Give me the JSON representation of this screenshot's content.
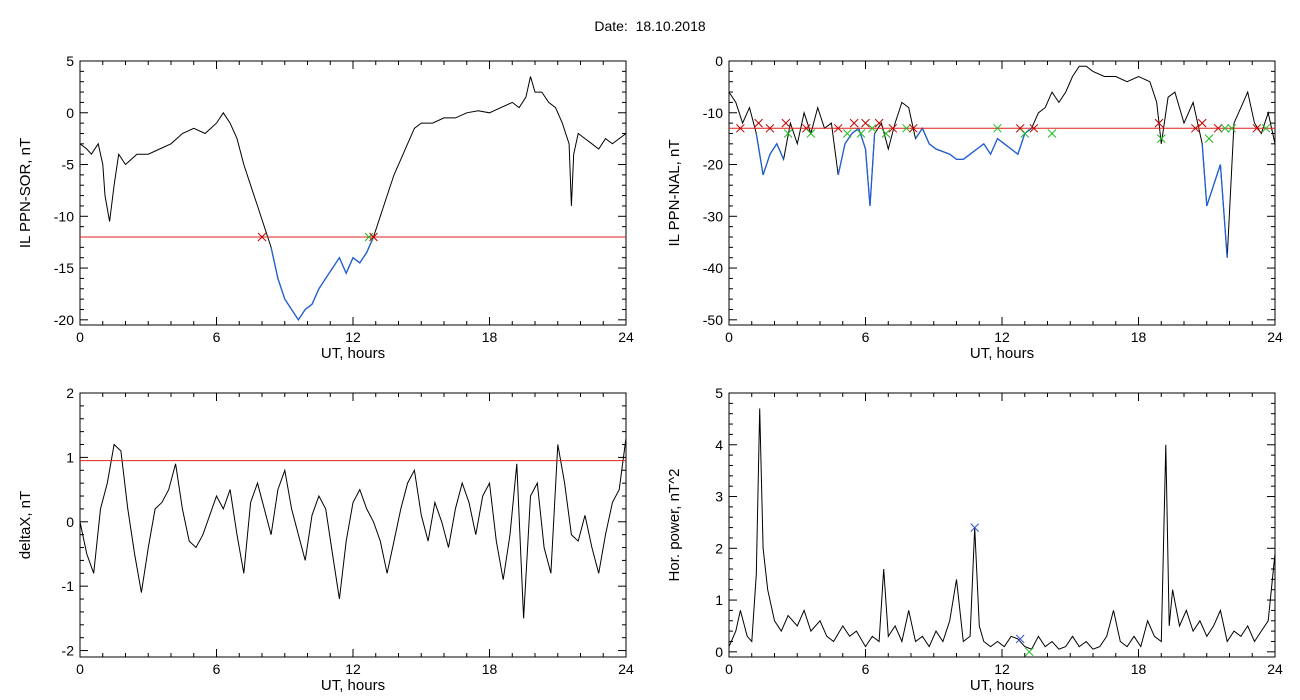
{
  "header": {
    "date_label": "Date:",
    "date_value": "18.10.2018"
  },
  "colors": {
    "trace": "#000000",
    "below_threshold": "#1f5fd6",
    "threshold": "#e0201a",
    "cross_red": "#c00000",
    "cross_green": "#22bb22",
    "cross_blue": "#3355cc"
  },
  "chart_data": [
    {
      "type": "line",
      "id": "sor",
      "xlabel": "UT, hours",
      "ylabel": "IL PPN-SOR, nT",
      "xlim": [
        0,
        24
      ],
      "ylim": [
        -20.5,
        5
      ],
      "xticks": [
        0,
        6,
        12,
        18,
        24
      ],
      "yticks": [
        5,
        0,
        -5,
        -10,
        -15,
        -20
      ],
      "threshold": -12,
      "x": [
        0,
        0.3,
        0.5,
        0.8,
        1.0,
        1.1,
        1.3,
        1.5,
        1.7,
        2.0,
        2.5,
        3.0,
        3.5,
        4.0,
        4.5,
        5.0,
        5.5,
        6.0,
        6.3,
        6.6,
        6.9,
        7.2,
        7.5,
        7.8,
        8.1,
        8.4,
        8.7,
        9.0,
        9.3,
        9.6,
        9.9,
        10.2,
        10.5,
        10.8,
        11.1,
        11.4,
        11.7,
        12.0,
        12.3,
        12.6,
        12.9,
        13.2,
        13.5,
        13.8,
        14.1,
        14.4,
        14.7,
        15.0,
        15.5,
        16.0,
        16.5,
        17.0,
        17.5,
        18.0,
        18.5,
        19.0,
        19.3,
        19.6,
        19.8,
        20.0,
        20.3,
        20.6,
        20.9,
        21.2,
        21.5,
        21.6,
        21.7,
        21.9,
        22.2,
        22.5,
        22.8,
        23.1,
        23.4,
        23.7,
        24.0
      ],
      "values": [
        -3,
        -3.5,
        -4,
        -3,
        -5,
        -8,
        -10.5,
        -7,
        -4,
        -5,
        -4,
        -4,
        -3.5,
        -3,
        -2,
        -1.5,
        -2,
        -1,
        0,
        -1,
        -2.5,
        -5,
        -7,
        -9,
        -11,
        -13,
        -16,
        -18,
        -19,
        -20,
        -19,
        -18.5,
        -17,
        -16,
        -15,
        -14,
        -15.5,
        -14,
        -14.5,
        -13.5,
        -12,
        -10,
        -8,
        -6,
        -4.5,
        -3,
        -1.5,
        -1,
        -1,
        -0.5,
        -0.5,
        0,
        0.2,
        0,
        0.5,
        1,
        0.5,
        1.5,
        3.5,
        2,
        2,
        1,
        0.5,
        -1,
        -3,
        -9,
        -4,
        -2,
        -2.5,
        -3,
        -3.5,
        -2.5,
        -3,
        -2.5,
        -2
      ],
      "crosses": [
        {
          "x": 8.0,
          "y": -12,
          "color": "cross_red"
        },
        {
          "x": 12.7,
          "y": -12,
          "color": "cross_green"
        },
        {
          "x": 12.9,
          "y": -12,
          "color": "cross_red"
        }
      ]
    },
    {
      "type": "line",
      "id": "nal",
      "xlabel": "UT, hours",
      "ylabel": "IL PPN-NAL, nT",
      "xlim": [
        0,
        24
      ],
      "ylim": [
        -51,
        0
      ],
      "xticks": [
        0,
        6,
        12,
        18,
        24
      ],
      "yticks": [
        0,
        -10,
        -20,
        -30,
        -40,
        -50
      ],
      "threshold": -13,
      "x": [
        0,
        0.3,
        0.6,
        0.9,
        1.2,
        1.5,
        1.8,
        2.1,
        2.4,
        2.7,
        3.0,
        3.3,
        3.6,
        3.9,
        4.2,
        4.5,
        4.8,
        5.1,
        5.4,
        5.7,
        6.0,
        6.2,
        6.4,
        6.7,
        7.0,
        7.3,
        7.6,
        7.9,
        8.2,
        8.5,
        8.8,
        9.1,
        9.4,
        9.7,
        10.0,
        10.3,
        10.6,
        10.9,
        11.2,
        11.5,
        11.8,
        12.1,
        12.4,
        12.7,
        13.0,
        13.3,
        13.6,
        13.9,
        14.2,
        14.5,
        14.8,
        15.1,
        15.4,
        15.7,
        16.0,
        16.5,
        17.0,
        17.5,
        18.0,
        18.5,
        18.8,
        19.0,
        19.3,
        19.6,
        20.0,
        20.4,
        20.8,
        21.0,
        21.3,
        21.6,
        21.9,
        22.2,
        22.5,
        22.8,
        23.1,
        23.4,
        23.7,
        24.0
      ],
      "values": [
        -6,
        -8,
        -12,
        -9,
        -14,
        -22,
        -18,
        -16,
        -19,
        -12,
        -16,
        -10,
        -14,
        -9,
        -13,
        -12,
        -22,
        -16,
        -14,
        -13,
        -17,
        -28,
        -14,
        -12,
        -17,
        -12,
        -8,
        -9,
        -15,
        -13,
        -16,
        -17,
        -17.5,
        -18,
        -19,
        -19,
        -18,
        -17,
        -16,
        -18,
        -15,
        -16,
        -17,
        -18,
        -14,
        -13,
        -10,
        -9,
        -6,
        -8,
        -6,
        -3,
        -1,
        -1,
        -2,
        -3,
        -3,
        -4,
        -3,
        -4,
        -8,
        -16,
        -7,
        -6,
        -12,
        -8,
        -16,
        -28,
        -24,
        -20,
        -38,
        -12,
        -9,
        -6,
        -12,
        -14,
        -10,
        -16
      ],
      "crosses": [
        {
          "x": 0.5,
          "y": -13,
          "color": "cross_red"
        },
        {
          "x": 1.3,
          "y": -12,
          "color": "cross_red"
        },
        {
          "x": 1.8,
          "y": -13,
          "color": "cross_red"
        },
        {
          "x": 2.5,
          "y": -12,
          "color": "cross_red"
        },
        {
          "x": 2.6,
          "y": -14,
          "color": "cross_green"
        },
        {
          "x": 3.4,
          "y": -13,
          "color": "cross_red"
        },
        {
          "x": 3.6,
          "y": -14,
          "color": "cross_green"
        },
        {
          "x": 4.8,
          "y": -13,
          "color": "cross_red"
        },
        {
          "x": 5.2,
          "y": -14,
          "color": "cross_green"
        },
        {
          "x": 5.5,
          "y": -12,
          "color": "cross_red"
        },
        {
          "x": 5.8,
          "y": -14,
          "color": "cross_green"
        },
        {
          "x": 6.0,
          "y": -12,
          "color": "cross_red"
        },
        {
          "x": 6.3,
          "y": -13,
          "color": "cross_green"
        },
        {
          "x": 6.6,
          "y": -12,
          "color": "cross_red"
        },
        {
          "x": 6.9,
          "y": -14,
          "color": "cross_green"
        },
        {
          "x": 7.2,
          "y": -13,
          "color": "cross_red"
        },
        {
          "x": 7.8,
          "y": -13,
          "color": "cross_green"
        },
        {
          "x": 8.1,
          "y": -13,
          "color": "cross_red"
        },
        {
          "x": 11.8,
          "y": -13,
          "color": "cross_green"
        },
        {
          "x": 12.8,
          "y": -13,
          "color": "cross_red"
        },
        {
          "x": 13.0,
          "y": -14,
          "color": "cross_green"
        },
        {
          "x": 13.4,
          "y": -13,
          "color": "cross_red"
        },
        {
          "x": 14.2,
          "y": -14,
          "color": "cross_green"
        },
        {
          "x": 18.9,
          "y": -12,
          "color": "cross_red"
        },
        {
          "x": 19.0,
          "y": -15,
          "color": "cross_green"
        },
        {
          "x": 20.5,
          "y": -13,
          "color": "cross_red"
        },
        {
          "x": 20.8,
          "y": -12,
          "color": "cross_red"
        },
        {
          "x": 21.1,
          "y": -15,
          "color": "cross_green"
        },
        {
          "x": 21.5,
          "y": -13,
          "color": "cross_red"
        },
        {
          "x": 21.8,
          "y": -13,
          "color": "cross_green"
        },
        {
          "x": 22.1,
          "y": -13,
          "color": "cross_green"
        },
        {
          "x": 23.2,
          "y": -13,
          "color": "cross_red"
        },
        {
          "x": 23.6,
          "y": -13,
          "color": "cross_green"
        }
      ]
    },
    {
      "type": "line",
      "id": "deltax",
      "xlabel": "UT, hours",
      "ylabel": "deltaX, nT",
      "xlim": [
        0,
        24
      ],
      "ylim": [
        -2.1,
        2
      ],
      "xticks": [
        0,
        6,
        12,
        18,
        24
      ],
      "yticks": [
        2,
        1,
        0,
        -1,
        -2
      ],
      "threshold": 0.95,
      "x": [
        0,
        0.3,
        0.6,
        0.9,
        1.2,
        1.5,
        1.8,
        2.1,
        2.4,
        2.7,
        3.0,
        3.3,
        3.6,
        3.9,
        4.2,
        4.5,
        4.8,
        5.1,
        5.4,
        5.7,
        6.0,
        6.3,
        6.6,
        6.9,
        7.2,
        7.5,
        7.8,
        8.1,
        8.4,
        8.7,
        9.0,
        9.3,
        9.6,
        9.9,
        10.2,
        10.5,
        10.8,
        11.1,
        11.4,
        11.7,
        12.0,
        12.3,
        12.6,
        12.9,
        13.2,
        13.5,
        13.8,
        14.1,
        14.4,
        14.7,
        15.0,
        15.3,
        15.6,
        15.9,
        16.2,
        16.5,
        16.8,
        17.1,
        17.4,
        17.7,
        18.0,
        18.3,
        18.6,
        18.9,
        19.2,
        19.5,
        19.8,
        20.1,
        20.4,
        20.7,
        21.0,
        21.3,
        21.6,
        21.9,
        22.2,
        22.5,
        22.8,
        23.1,
        23.4,
        23.7,
        24.0
      ],
      "values": [
        0,
        -0.5,
        -0.8,
        0.2,
        0.6,
        1.2,
        1.1,
        0.2,
        -0.5,
        -1.1,
        -0.4,
        0.2,
        0.3,
        0.5,
        0.9,
        0.2,
        -0.3,
        -0.4,
        -0.2,
        0.1,
        0.4,
        0.2,
        0.5,
        -0.2,
        -0.8,
        0.3,
        0.6,
        0.2,
        -0.2,
        0.5,
        0.8,
        0.2,
        -0.2,
        -0.6,
        0.1,
        0.4,
        0.2,
        -0.5,
        -1.2,
        -0.3,
        0.3,
        0.5,
        0.2,
        0.0,
        -0.3,
        -0.8,
        -0.3,
        0.2,
        0.6,
        0.8,
        0.1,
        -0.3,
        0.3,
        0.0,
        -0.4,
        0.2,
        0.6,
        0.3,
        -0.2,
        0.4,
        0.6,
        -0.3,
        -0.9,
        -0.2,
        0.9,
        -1.5,
        0.4,
        0.6,
        -0.4,
        -0.8,
        1.2,
        0.6,
        -0.2,
        -0.3,
        0.1,
        -0.4,
        -0.8,
        -0.2,
        0.3,
        0.5,
        1.3
      ]
    },
    {
      "type": "line",
      "id": "power",
      "xlabel": "UT, hours",
      "ylabel": "Hor. power, nT^2",
      "xlim": [
        0,
        24
      ],
      "ylim": [
        -0.1,
        5
      ],
      "xticks": [
        0,
        6,
        12,
        18,
        24
      ],
      "yticks": [
        5,
        4,
        3,
        2,
        1,
        0
      ],
      "x": [
        0,
        0.3,
        0.5,
        0.8,
        1.0,
        1.2,
        1.35,
        1.5,
        1.7,
        2.0,
        2.3,
        2.6,
        3.0,
        3.3,
        3.6,
        4.0,
        4.3,
        4.6,
        5.0,
        5.3,
        5.6,
        6.0,
        6.3,
        6.6,
        6.8,
        7.0,
        7.3,
        7.6,
        7.9,
        8.2,
        8.5,
        8.8,
        9.1,
        9.4,
        9.7,
        10.0,
        10.3,
        10.6,
        10.8,
        11.0,
        11.2,
        11.5,
        11.8,
        12.1,
        12.4,
        12.7,
        13.0,
        13.3,
        13.6,
        13.9,
        14.2,
        14.5,
        14.8,
        15.1,
        15.4,
        15.7,
        16.0,
        16.3,
        16.6,
        16.9,
        17.2,
        17.5,
        17.8,
        18.1,
        18.4,
        18.7,
        19.0,
        19.2,
        19.35,
        19.5,
        19.8,
        20.1,
        20.4,
        20.7,
        21.0,
        21.3,
        21.6,
        21.9,
        22.2,
        22.5,
        22.8,
        23.1,
        23.4,
        23.7,
        24.0
      ],
      "values": [
        0.1,
        0.4,
        0.8,
        0.3,
        0.2,
        1.5,
        4.7,
        2.0,
        1.2,
        0.6,
        0.4,
        0.7,
        0.5,
        0.8,
        0.4,
        0.6,
        0.3,
        0.2,
        0.5,
        0.3,
        0.4,
        0.1,
        0.3,
        0.2,
        1.6,
        0.3,
        0.5,
        0.2,
        0.8,
        0.2,
        0.3,
        0.1,
        0.4,
        0.2,
        0.6,
        1.4,
        0.2,
        0.3,
        2.4,
        0.5,
        0.2,
        0.1,
        0.2,
        0.1,
        0.3,
        0.25,
        0.1,
        0.05,
        0.3,
        0.1,
        0.2,
        0.05,
        0.1,
        0.3,
        0.1,
        0.2,
        0.05,
        0.1,
        0.3,
        0.8,
        0.2,
        0.1,
        0.3,
        0.1,
        0.6,
        0.3,
        0.2,
        4.0,
        0.5,
        1.2,
        0.5,
        0.8,
        0.4,
        0.6,
        0.3,
        0.5,
        0.8,
        0.2,
        0.4,
        0.3,
        0.5,
        0.2,
        0.4,
        0.6,
        1.9
      ],
      "crosses": [
        {
          "x": 10.8,
          "y": 2.4,
          "color": "cross_blue"
        },
        {
          "x": 12.8,
          "y": 0.25,
          "color": "cross_blue"
        },
        {
          "x": 13.2,
          "y": 0.0,
          "color": "cross_green"
        }
      ]
    }
  ]
}
